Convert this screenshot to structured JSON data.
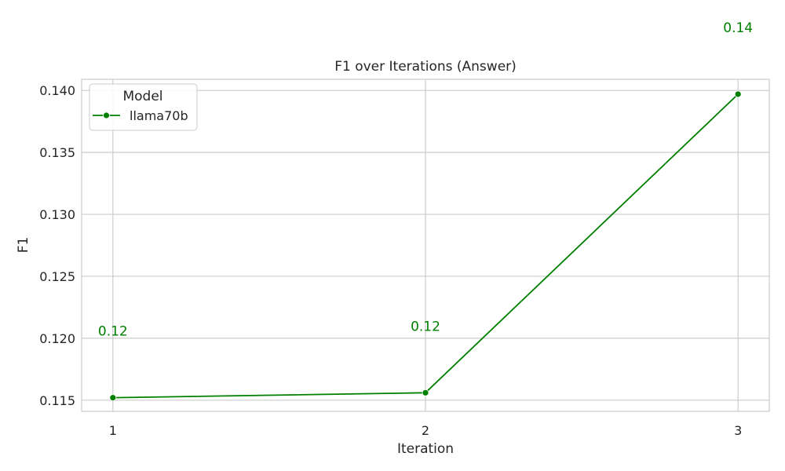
{
  "chart_data": {
    "type": "line",
    "title": "F1 over Iterations (Answer)",
    "xlabel": "Iteration",
    "ylabel": "F1",
    "x": [
      1,
      2,
      3
    ],
    "x_ticks": [
      "1",
      "2",
      "3"
    ],
    "y_ticks": [
      "0.115",
      "0.120",
      "0.125",
      "0.130",
      "0.135",
      "0.140"
    ],
    "ylim": [
      0.1141,
      0.1409
    ],
    "xlim": [
      0.9,
      3.1
    ],
    "grid": true,
    "legend": {
      "title": "Model",
      "placement": "top-left"
    },
    "series": [
      {
        "name": "llama70b",
        "color": "#008000",
        "values": [
          0.1152,
          0.1156,
          0.1397
        ],
        "data_labels": [
          "0.12",
          "0.12",
          "0.14"
        ]
      }
    ]
  }
}
